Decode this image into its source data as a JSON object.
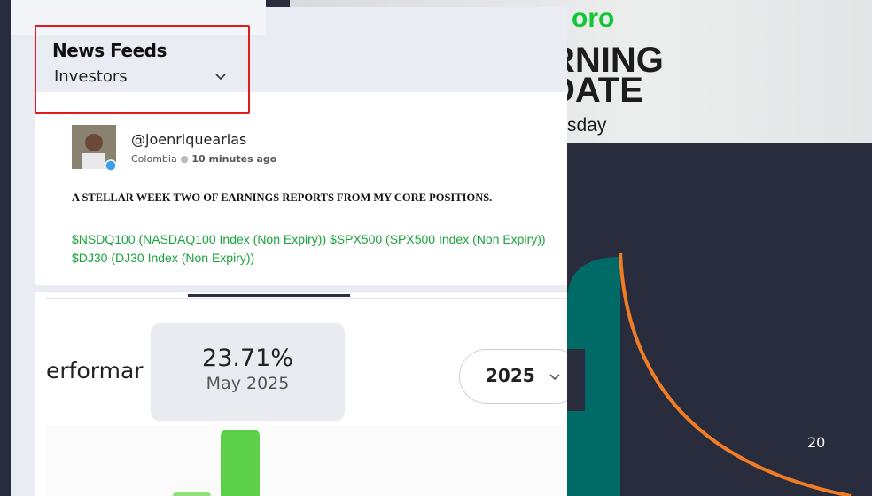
{
  "promo": {
    "brand": "oro",
    "line1": "RNING",
    "line2": "DATE",
    "line3": "sday"
  },
  "feed": {
    "title": "News Feeds",
    "filter": "Investors",
    "post": {
      "user": "@joenriquearias",
      "country": "Colombia",
      "time": "10 minutes ago",
      "headline": "A STELLAR WEEK TWO OF EARNINGS REPORTS FROM MY CORE POSITIONS.",
      "tags": "$NSDQ100 (NASDAQ100 Index (Non Expiry)) $SPX500 (SPX500 Index (Non Expiry)) $DJ30 (DJ30 Index (Non Expiry))"
    }
  },
  "performance": {
    "label": "erformar",
    "tooltip_value": "23.71%",
    "tooltip_date": "May 2025",
    "year": "2025"
  },
  "page_number": "20"
}
